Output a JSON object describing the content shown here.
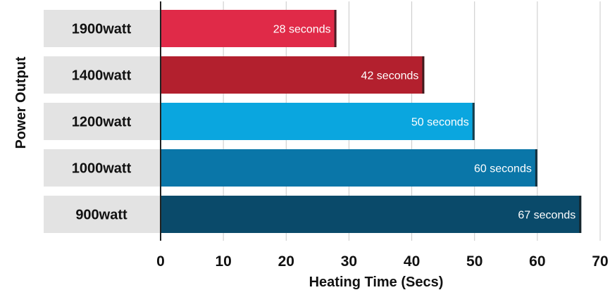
{
  "chart_data": {
    "type": "bar",
    "orientation": "horizontal",
    "categories": [
      "1900watt",
      "1400watt",
      "1200watt",
      "1000watt",
      "900watt"
    ],
    "values": [
      28,
      42,
      50,
      60,
      67
    ],
    "data_labels": [
      "28 seconds",
      "42 seconds",
      "50 seconds",
      "60 seconds",
      "67 seconds"
    ],
    "colors": [
      "#e02a48",
      "#b3202e",
      "#0aa6df",
      "#0a76a8",
      "#0a4a6a"
    ],
    "xlabel": "Heating Time (Secs)",
    "ylabel": "Power Output",
    "xlim": [
      0,
      70
    ],
    "x_ticks": [
      "0",
      "10",
      "20",
      "30",
      "40",
      "50",
      "60",
      "70"
    ],
    "grid": "vertical",
    "category_label_background": "#e3e3e3"
  }
}
